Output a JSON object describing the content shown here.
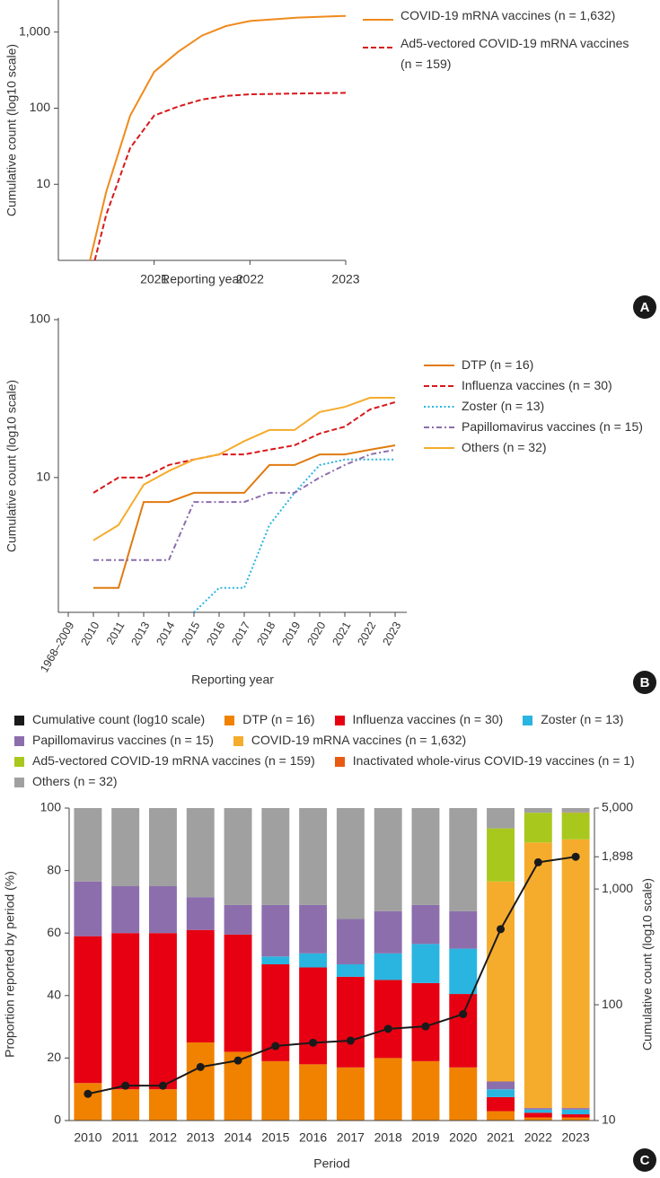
{
  "chart_data": [
    {
      "type": "line",
      "panel_label": "A",
      "xlabel": "Reporting year",
      "ylabel": "Cumulative count (log10 scale)",
      "log_y": true,
      "xlim": [
        2020,
        2023
      ],
      "xticks": [
        2021,
        2022,
        2023
      ],
      "ylim": [
        1,
        2500
      ],
      "yticks": [
        10,
        100,
        {
          "value": 1000,
          "label": "1,000"
        }
      ],
      "legend": "upper right",
      "series": [
        {
          "name": "COVID-19 mRNA vaccines (n = 1,632)",
          "color": "#f08a1c",
          "style": "solid",
          "x": [
            2020.33,
            2020.5,
            2020.75,
            2021,
            2021.25,
            2021.5,
            2021.75,
            2022,
            2022.5,
            2023
          ],
          "values": [
            1,
            8,
            80,
            300,
            550,
            900,
            1200,
            1400,
            1550,
            1632
          ]
        },
        {
          "name": "Ad5-vectored COVID-19 mRNA vaccines (n = 159)",
          "color": "#d7191c",
          "style": "dashed",
          "x": [
            2020.38,
            2020.5,
            2020.75,
            2021,
            2021.25,
            2021.5,
            2021.75,
            2022,
            2022.5,
            2023
          ],
          "values": [
            1,
            4,
            30,
            80,
            105,
            130,
            145,
            152,
            156,
            159
          ]
        }
      ]
    },
    {
      "type": "line",
      "panel_label": "B",
      "xlabel": "Reporting year",
      "ylabel": "Cumulative count (log10 scale)",
      "log_y": true,
      "categories": [
        "1968–2009",
        "2010",
        "2011",
        "2013",
        "2014",
        "2015",
        "2016",
        "2017",
        "2018",
        "2019",
        "2020",
        "2021",
        "2022",
        "2023"
      ],
      "ylim": [
        1.4,
        100
      ],
      "yticks": [
        10,
        100
      ],
      "legend": "right",
      "series": [
        {
          "name": "DTP (n = 16)",
          "color": "#e07b10",
          "style": "solid",
          "values": [
            null,
            2,
            2,
            7,
            7,
            8,
            8,
            8,
            12,
            12,
            14,
            14,
            15,
            16
          ]
        },
        {
          "name": "Influenza vaccines (n = 30)",
          "color": "#d7191c",
          "style": "dashed",
          "values": [
            null,
            8,
            10,
            10,
            12,
            13,
            14,
            14,
            15,
            16,
            19,
            21,
            27,
            30
          ]
        },
        {
          "name": "Zoster (n = 13)",
          "color": "#29b5e0",
          "style": "dotted",
          "values": [
            null,
            null,
            null,
            null,
            null,
            1.4,
            2,
            2,
            5,
            8,
            12,
            13,
            13,
            13
          ]
        },
        {
          "name": "Papillomavirus vaccines (n = 15)",
          "color": "#8c6ead",
          "style": "dashdot",
          "values": [
            null,
            3,
            3,
            3,
            3,
            7,
            7,
            7,
            8,
            8,
            10,
            12,
            14,
            15
          ]
        },
        {
          "name": "Others (n = 32)",
          "color": "#f5ac2d",
          "style": "solid",
          "values": [
            null,
            4,
            5,
            9,
            11,
            13,
            14,
            17,
            20,
            20,
            26,
            28,
            32,
            32
          ]
        }
      ]
    },
    {
      "type": "bar",
      "stacked": true,
      "panel_label": "C",
      "xlabel": "Period",
      "ylabel": "Proportion reported by period (%)",
      "y2label": "Cumulative count (log10 scale)",
      "categories": [
        "2010",
        "2011",
        "2012",
        "2013",
        "2014",
        "2015",
        "2016",
        "2017",
        "2018",
        "2019",
        "2020",
        "2021",
        "2022",
        "2023"
      ],
      "ylim": [
        0,
        100
      ],
      "yticks": [
        0,
        20,
        40,
        60,
        80,
        100
      ],
      "y2_log": true,
      "y2lim": [
        10,
        5000
      ],
      "y2ticks": [
        10,
        100,
        {
          "value": 1000,
          "label": "1,000"
        },
        {
          "value": 1898,
          "label": "1,898"
        },
        {
          "value": 5000,
          "label": "5,000"
        }
      ],
      "legend": "top",
      "series": [
        {
          "name": "Cumulative count (log10 scale)",
          "color": "#1a1a1a",
          "type": "line",
          "axis": "y2",
          "values": [
            17,
            20,
            20,
            29,
            33,
            44,
            47,
            49,
            62,
            65,
            83,
            450,
            1700,
            1898
          ]
        },
        {
          "name": "DTP (n = 16)",
          "color": "#f08200",
          "values": [
            12,
            10,
            10,
            25,
            22,
            19,
            18,
            17,
            20,
            19,
            17,
            3,
            1,
            1
          ]
        },
        {
          "name": "Influenza vaccines (n = 30)",
          "color": "#e60012",
          "values": [
            47,
            50,
            50,
            36,
            37.5,
            31,
            31,
            29,
            25,
            25,
            23.5,
            4.5,
            1.5,
            1
          ]
        },
        {
          "name": "Zoster (n = 13)",
          "color": "#29b5e0",
          "values": [
            0,
            0,
            0,
            0,
            0,
            2.5,
            4.5,
            4,
            8.5,
            12.5,
            14.5,
            2.5,
            1,
            1.5
          ]
        },
        {
          "name": "Papillomavirus vaccines (n = 15)",
          "color": "#8c6ead",
          "values": [
            17.5,
            15,
            15,
            10.5,
            9.5,
            16.5,
            15.5,
            14.5,
            13.5,
            12.5,
            12,
            2.5,
            0.5,
            0.5
          ]
        },
        {
          "name": "COVID-19 mRNA vaccines (n = 1,632)",
          "color": "#f5ac2d",
          "values": [
            0,
            0,
            0,
            0,
            0,
            0,
            0,
            0,
            0,
            0,
            0,
            64,
            85,
            86
          ]
        },
        {
          "name": "Ad5-vectored COVID-19 mRNA vaccines (n = 159)",
          "color": "#a8c81e",
          "values": [
            0,
            0,
            0,
            0,
            0,
            0,
            0,
            0,
            0,
            0,
            0,
            17,
            9.5,
            8.5
          ]
        },
        {
          "name": "Inactivated whole-virus COVID-19 vaccines (n = 1)",
          "color": "#e85a10",
          "values": [
            0,
            0,
            0,
            0,
            0,
            0,
            0,
            0,
            0,
            0,
            0,
            0,
            0,
            0.1
          ]
        },
        {
          "name": "Others (n = 32)",
          "color": "#a0a0a0",
          "values": [
            23.5,
            25,
            25,
            28.5,
            31,
            31,
            31,
            35.5,
            33,
            31,
            33,
            6.5,
            1.5,
            1.4
          ]
        }
      ]
    }
  ]
}
